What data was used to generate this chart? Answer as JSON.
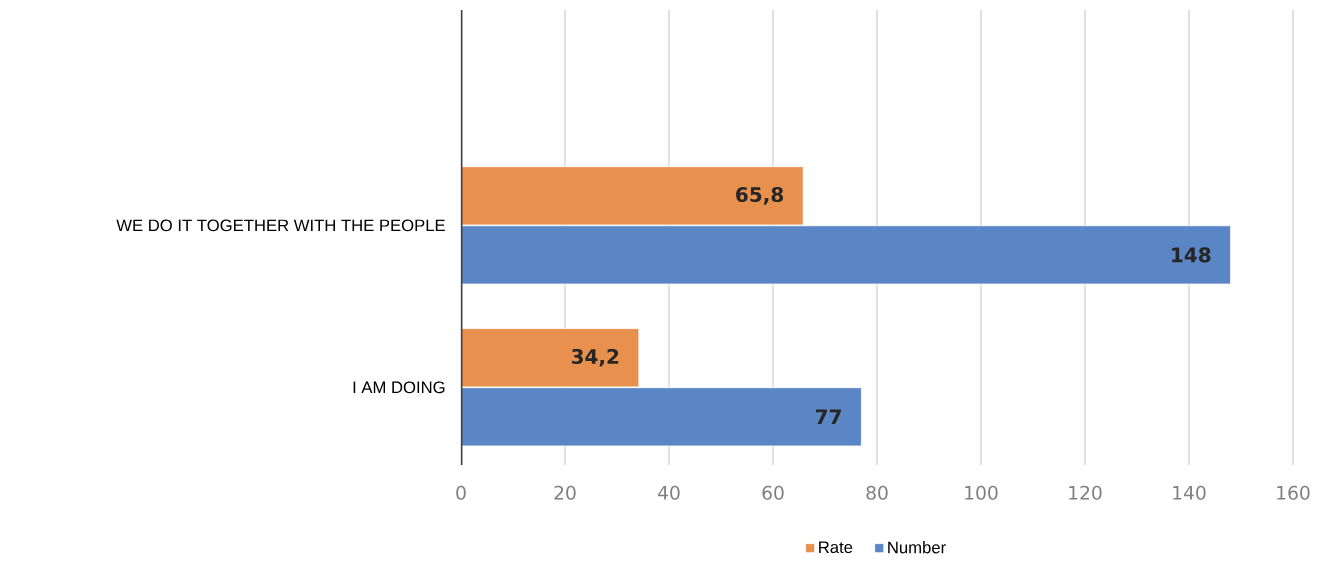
{
  "chart_data": {
    "type": "bar",
    "orientation": "horizontal",
    "categories": [
      "WE DO IT TOGETHER WITH THE PEOPLE",
      "I AM DOING"
    ],
    "series": [
      {
        "name": "Rate",
        "color": "#e8914f",
        "values": [
          65.8,
          34.2
        ],
        "value_labels": [
          "65,8",
          "34,2"
        ]
      },
      {
        "name": "Number",
        "color": "#5b86c5",
        "values": [
          148,
          77
        ],
        "value_labels": [
          "148",
          "77"
        ]
      }
    ],
    "xlim": [
      0,
      160
    ],
    "xticks": [
      0,
      20,
      40,
      60,
      80,
      100,
      120,
      140,
      160
    ],
    "grid": "x",
    "legend": "bottom"
  }
}
